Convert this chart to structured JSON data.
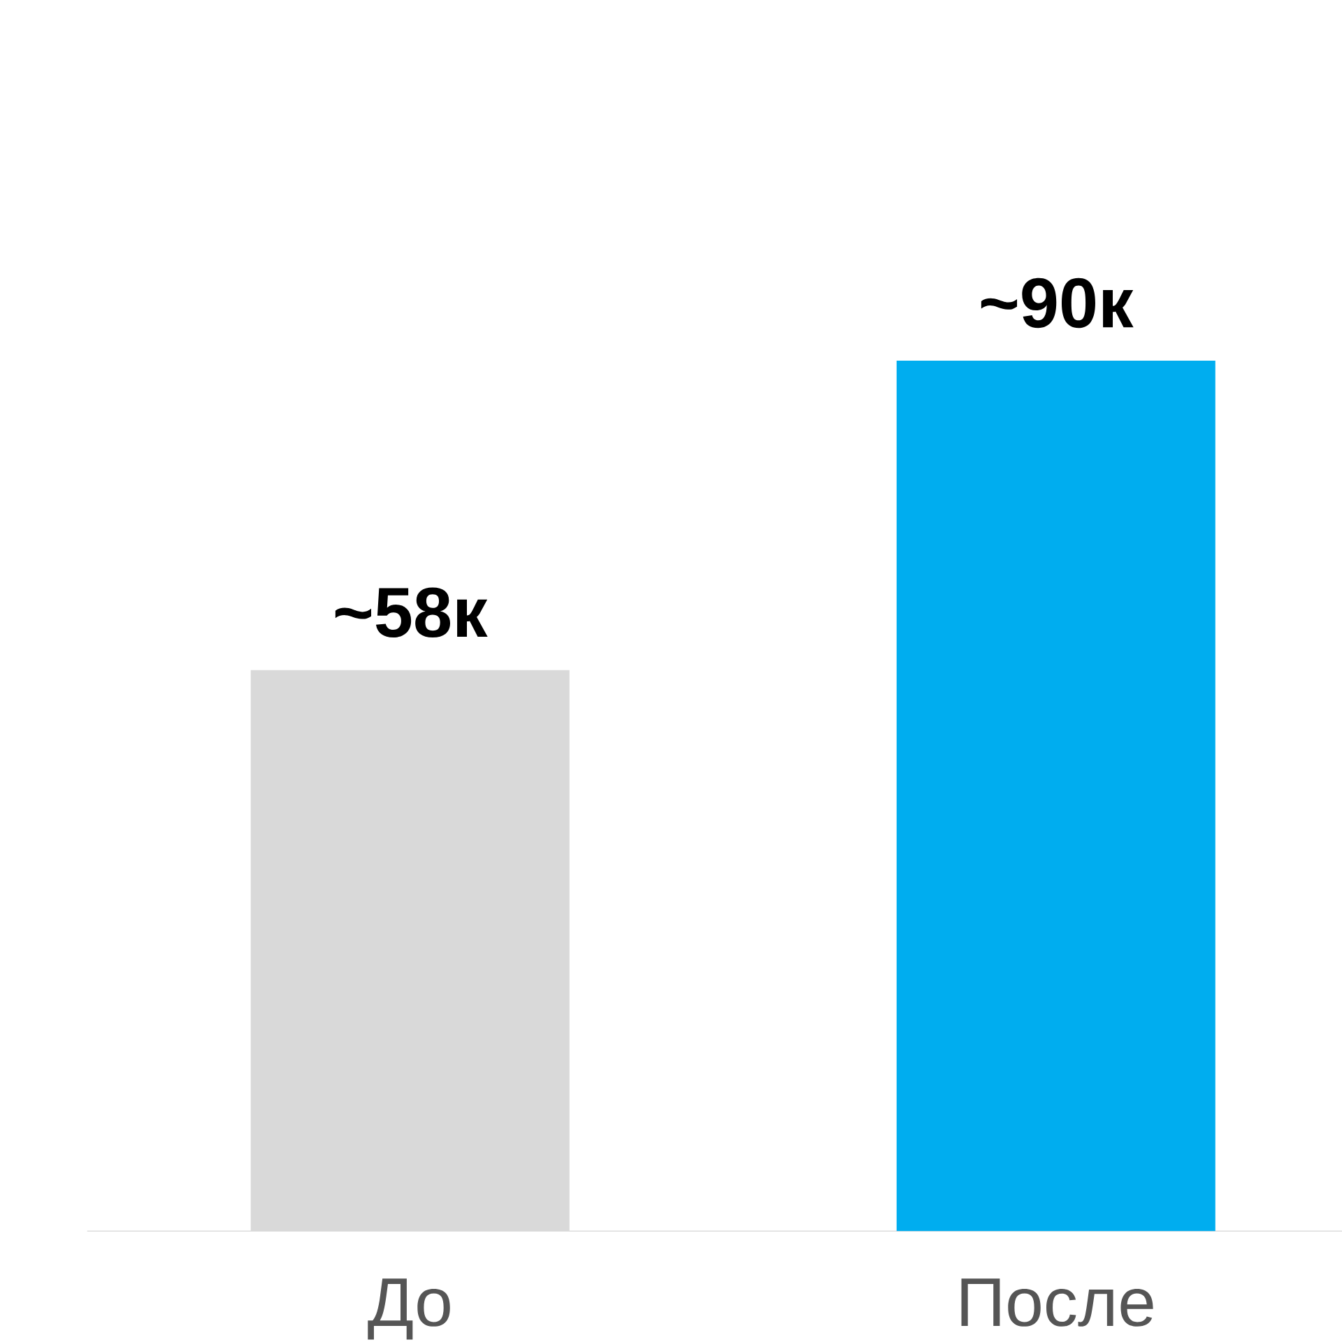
{
  "chart_data": {
    "type": "bar",
    "categories": [
      "До",
      "После"
    ],
    "values": [
      58,
      90
    ],
    "colors": [
      "#d9d9d9",
      "#00adef"
    ],
    "value_labels": [
      "~58к",
      "~90к"
    ],
    "tick_labels": "x"
  }
}
